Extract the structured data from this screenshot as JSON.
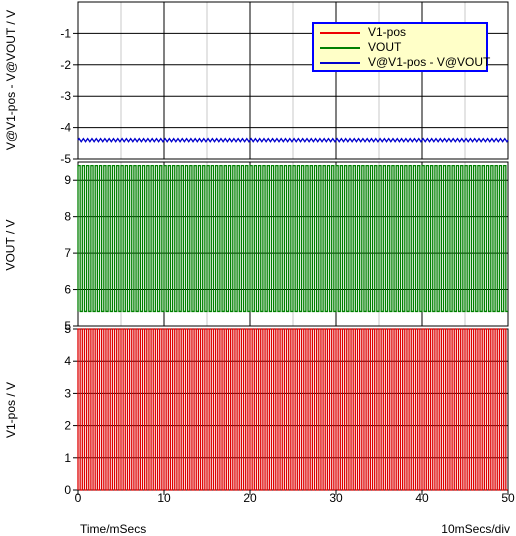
{
  "chart_data": [
    {
      "type": "line",
      "ylabel": "V@V1-pos - V@VOUT / V",
      "ylim": [
        -5,
        0
      ],
      "yticks": [
        "-1",
        "-2",
        "-3",
        "-4",
        "-5"
      ],
      "series": [
        {
          "name": "V@V1-pos - V@VOUT",
          "color": "#0000cc",
          "mean": -4.4,
          "ripple": 0.05
        }
      ]
    },
    {
      "type": "line",
      "ylabel": "VOUT / V",
      "ylim": [
        5,
        9.5
      ],
      "yticks": [
        "9",
        "8",
        "7",
        "6",
        "5"
      ],
      "series": [
        {
          "name": "VOUT",
          "color": "#008000",
          "high": 9.4,
          "low": 5.4,
          "shape": "square",
          "period_ms": 0.5
        }
      ]
    },
    {
      "type": "line",
      "ylabel": "V1-pos / V",
      "ylim": [
        0,
        5
      ],
      "yticks": [
        "5",
        "4",
        "3",
        "2",
        "1",
        "0"
      ],
      "series": [
        {
          "name": "V1-pos",
          "color": "#dd0000",
          "high": 5,
          "low": 0,
          "shape": "square",
          "period_ms": 0.5
        }
      ]
    }
  ],
  "x_axis": {
    "label": "Time/mSecs",
    "scale_label": "10mSecs/div",
    "xlim": [
      0,
      50
    ],
    "ticks": [
      "0",
      "10",
      "20",
      "30",
      "40",
      "50"
    ]
  },
  "legend": {
    "items": [
      {
        "label": "V1-pos",
        "color": "#ee0000"
      },
      {
        "label": "VOUT",
        "color": "#008000"
      },
      {
        "label": "V@V1-pos - V@VOUT",
        "color": "#0000cc"
      }
    ]
  }
}
